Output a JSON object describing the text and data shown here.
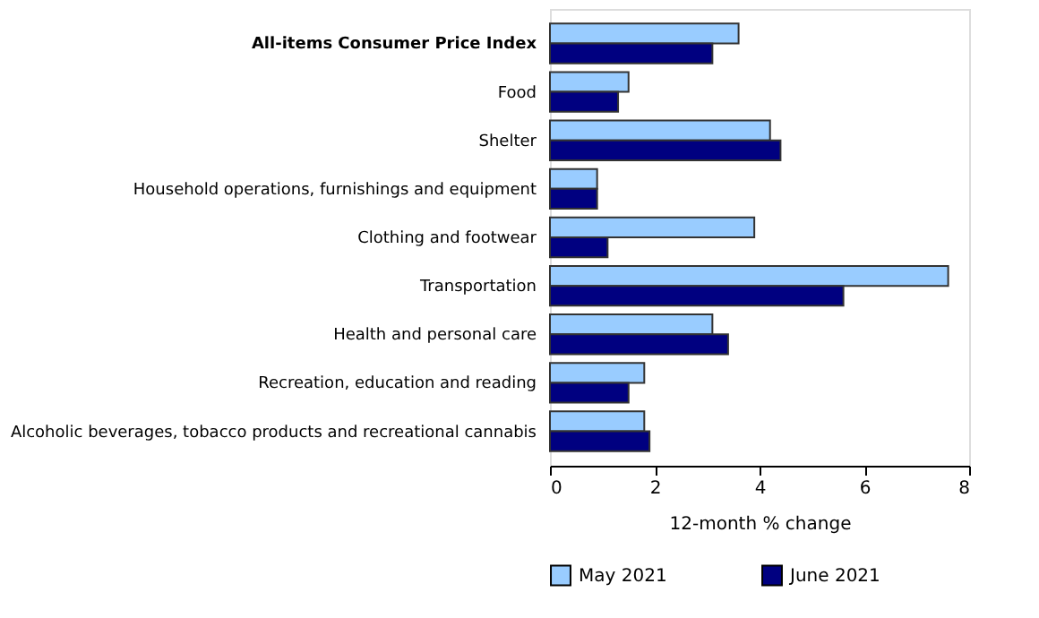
{
  "chart_data": {
    "type": "bar",
    "orientation": "horizontal",
    "xlabel": "12-month % change",
    "categories": [
      "All-items Consumer Price Index",
      "Food",
      "Shelter",
      "Household operations, furnishings and equipment",
      "Clothing and footwear",
      "Transportation",
      "Health and personal care",
      "Recreation, education and reading",
      "Alcoholic beverages, tobacco products and recreational cannabis"
    ],
    "series": [
      {
        "name": "May 2021",
        "color": "#99ccff",
        "values": [
          3.6,
          1.5,
          4.2,
          0.9,
          3.9,
          7.6,
          3.1,
          1.8,
          1.8
        ]
      },
      {
        "name": "June 2021",
        "color": "#000080",
        "values": [
          3.1,
          1.3,
          4.4,
          0.9,
          1.1,
          5.6,
          3.4,
          1.5,
          1.9
        ]
      }
    ],
    "xlim": [
      0,
      8
    ],
    "xticks": [
      0,
      2,
      4,
      6,
      8
    ],
    "grid": false,
    "legend": "bottom"
  }
}
